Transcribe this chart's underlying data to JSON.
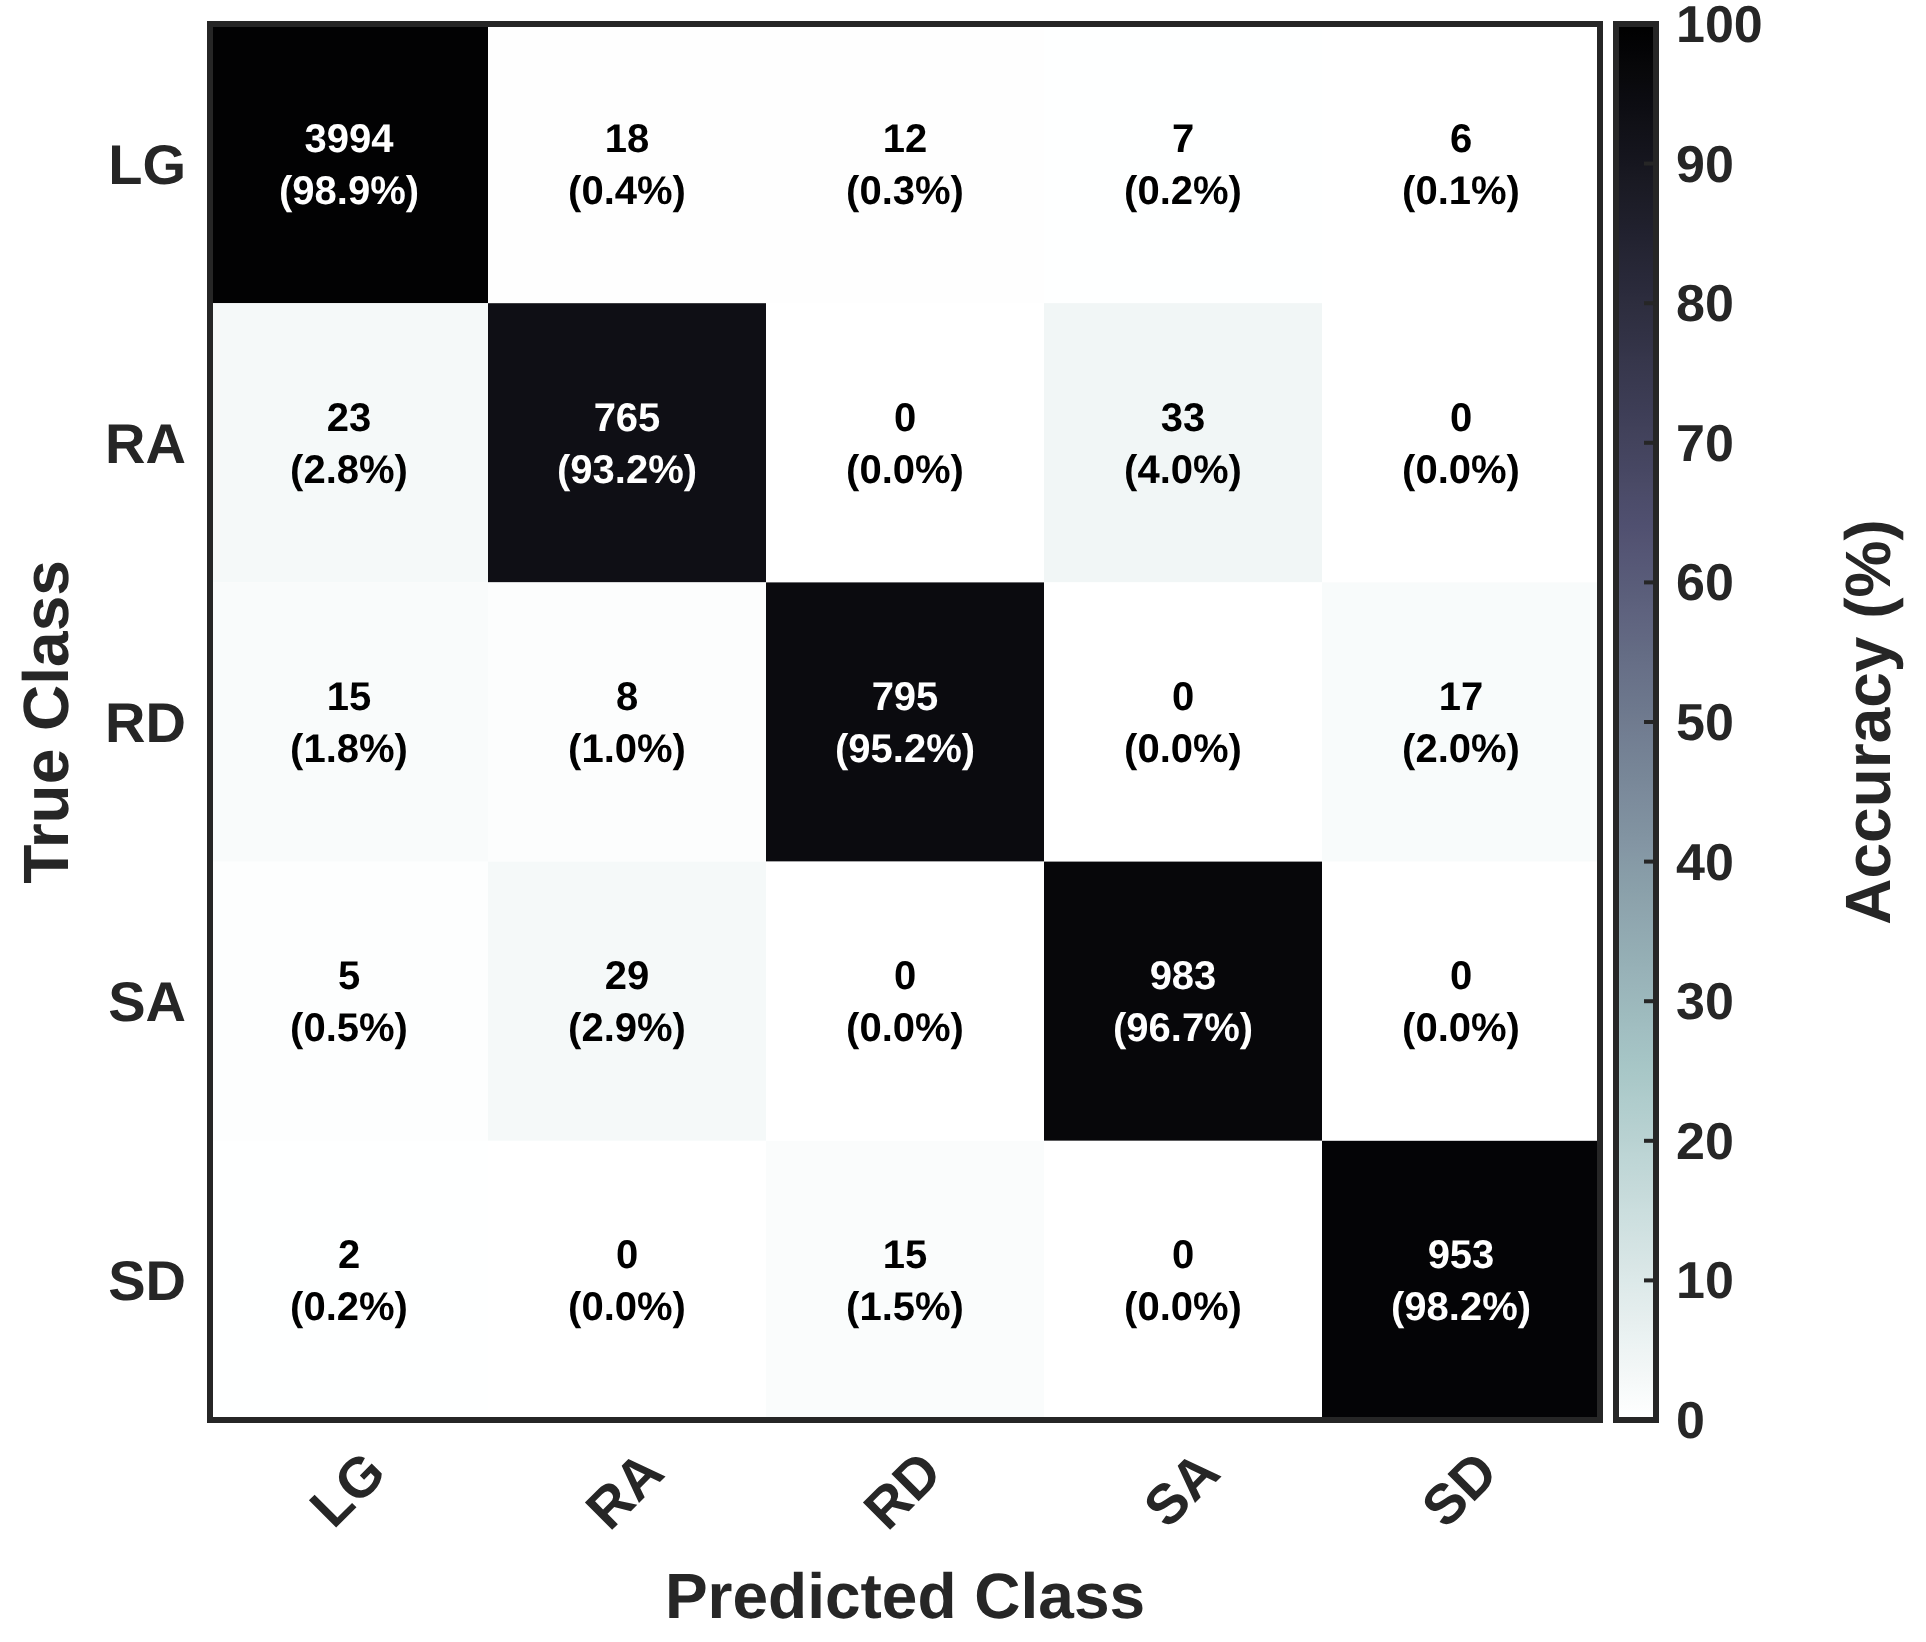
{
  "chart_data": {
    "type": "heatmap",
    "xlabel": "Predicted Class",
    "ylabel": "True Class",
    "clabel": "Accuracy (%)",
    "categories": [
      "LG",
      "RA",
      "RD",
      "SA",
      "SD"
    ],
    "y_categories": [
      "LG",
      "RA",
      "RD",
      "SA",
      "SD"
    ],
    "cells": [
      [
        98.9,
        0.4,
        0.3,
        0.2,
        0.1
      ],
      [
        2.8,
        93.2,
        0.0,
        4.0,
        0.0
      ],
      [
        1.8,
        1.0,
        95.2,
        0.0,
        2.0
      ],
      [
        0.5,
        2.9,
        0.0,
        96.7,
        0.0
      ],
      [
        0.2,
        0.0,
        1.5,
        0.0,
        98.2
      ]
    ],
    "cell_labels": [
      [
        "3994\n(98.9%)",
        "18\n(0.4%)",
        "12\n(0.3%)",
        "7\n(0.2%)",
        "6\n(0.1%)"
      ],
      [
        "23\n(2.8%)",
        "765\n(93.2%)",
        "0\n(0.0%)",
        "33\n(4.0%)",
        "0\n(0.0%)"
      ],
      [
        "15\n(1.8%)",
        "8\n(1.0%)",
        "795\n(95.2%)",
        "0\n(0.0%)",
        "17\n(2.0%)"
      ],
      [
        "5\n(0.5%)",
        "29\n(2.9%)",
        "0\n(0.0%)",
        "983\n(96.7%)",
        "0\n(0.0%)"
      ],
      [
        "2\n(0.2%)",
        "0\n(0.0%)",
        "15\n(1.5%)",
        "0\n(0.0%)",
        "953\n(98.2%)"
      ]
    ],
    "clim": [
      0,
      100
    ],
    "cticks": [
      0,
      10,
      20,
      30,
      40,
      50,
      60,
      70,
      80,
      90,
      100
    ]
  }
}
